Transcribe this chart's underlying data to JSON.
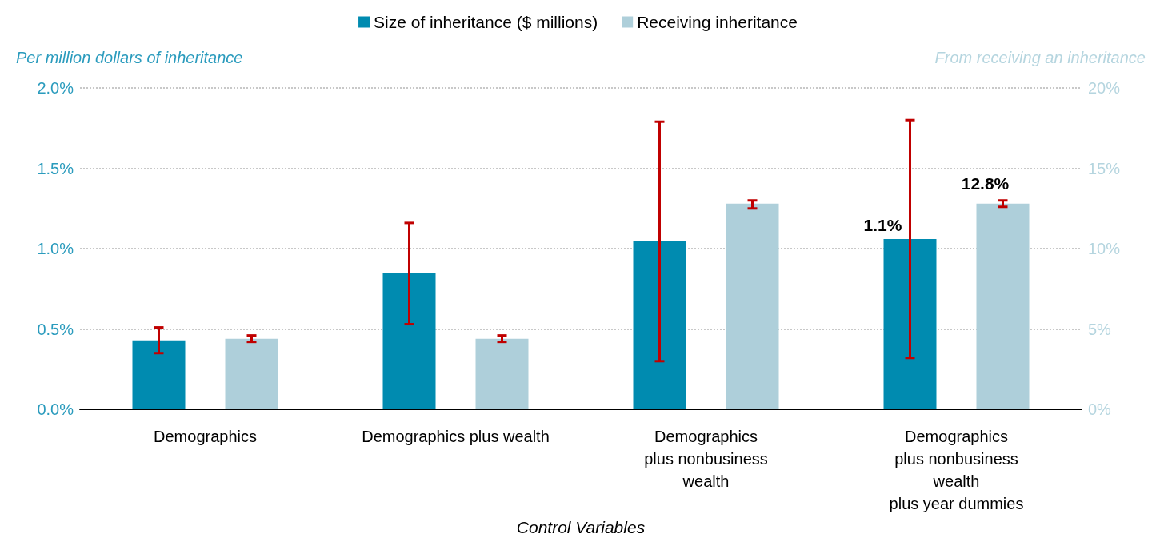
{
  "chart_data": {
    "type": "bar",
    "xlabel": "Control Variables",
    "ylabel": "Per million dollars of inheritance",
    "y2label": "From receiving an inheritance",
    "categories": [
      "Demographics",
      "Demographics plus wealth",
      "Demographics\nplus nonbusiness\nwealth",
      "Demographics\nplus nonbusiness\nwealth\nplus year dummies"
    ],
    "series": [
      {
        "name": "Size of inheritance ($ millions)",
        "color": "#008bb0",
        "values": [
          0.43,
          0.85,
          1.05,
          1.06
        ],
        "errors": [
          [
            0.35,
            0.51
          ],
          [
            0.53,
            1.16
          ],
          [
            0.3,
            1.79
          ],
          [
            0.32,
            1.8
          ]
        ],
        "value_labels": [
          null,
          null,
          null,
          "1.1%"
        ]
      },
      {
        "name": "Receiving inheritance",
        "color": "#aecfda",
        "axis": "y2",
        "values": [
          4.4,
          4.4,
          12.8,
          12.8
        ],
        "errors": [
          [
            4.2,
            4.6
          ],
          [
            4.2,
            4.6
          ],
          [
            12.5,
            13.0
          ],
          [
            12.6,
            13.0
          ]
        ],
        "value_labels": [
          null,
          null,
          null,
          "12.8%"
        ]
      }
    ],
    "ylim": [
      0,
      2
    ],
    "yticks": [
      {
        "value": 0,
        "label": "0.0%"
      },
      {
        "value": 0.5,
        "label": "0.5%"
      },
      {
        "value": 1,
        "label": "1.0%"
      },
      {
        "value": 1.5,
        "label": "1.5%"
      },
      {
        "value": 2,
        "label": "2.0%"
      }
    ],
    "y2lim": [
      0,
      20
    ],
    "y2ticks": [
      {
        "value": 0,
        "label": "0%"
      },
      {
        "value": 5,
        "label": "5%"
      },
      {
        "value": 10,
        "label": "10%"
      },
      {
        "value": 15,
        "label": "15%"
      },
      {
        "value": 20,
        "label": "20%"
      }
    ],
    "grid": "y",
    "legend": "top"
  }
}
